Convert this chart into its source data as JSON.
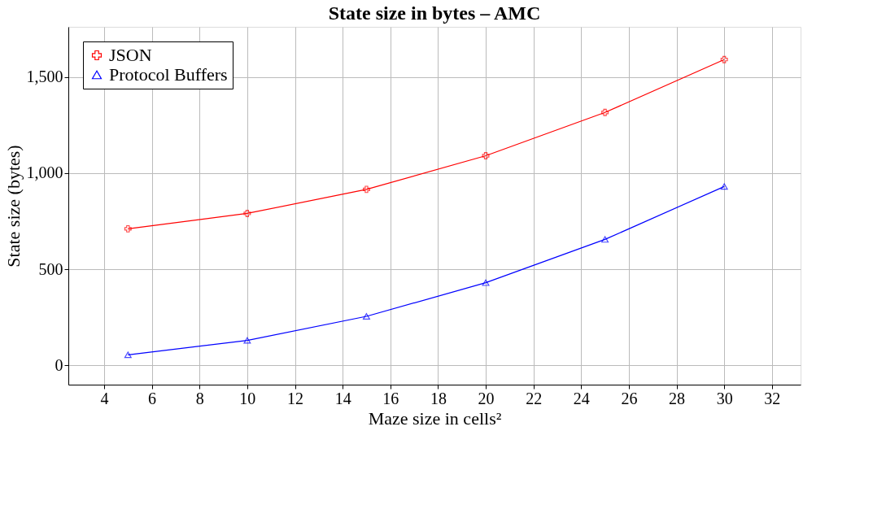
{
  "chart_data": {
    "type": "line",
    "title": "State size in bytes – AMC",
    "xlabel": "Maze size in cells²",
    "ylabel": "State size (bytes)",
    "x": [
      5,
      10,
      15,
      20,
      25,
      30
    ],
    "series": [
      {
        "name": "JSON",
        "color": "#ff0000",
        "marker": "cross",
        "values": [
          710,
          790,
          915,
          1090,
          1315,
          1590
        ]
      },
      {
        "name": "Protocol Buffers",
        "color": "#0000ff",
        "marker": "triangle",
        "values": [
          55,
          130,
          255,
          430,
          655,
          930
        ]
      }
    ],
    "xlim": [
      2.5,
      33.2
    ],
    "xticks": [
      4,
      6,
      8,
      10,
      12,
      14,
      16,
      18,
      20,
      22,
      24,
      26,
      28,
      30,
      32
    ],
    "ylim": [
      -100,
      1760
    ],
    "yticks": [
      0,
      500,
      {
        "value": 1000,
        "label": "1,000"
      },
      {
        "value": 1500,
        "label": "1,500"
      }
    ],
    "grid": true,
    "legend": "top left",
    "line_style": "solid"
  }
}
